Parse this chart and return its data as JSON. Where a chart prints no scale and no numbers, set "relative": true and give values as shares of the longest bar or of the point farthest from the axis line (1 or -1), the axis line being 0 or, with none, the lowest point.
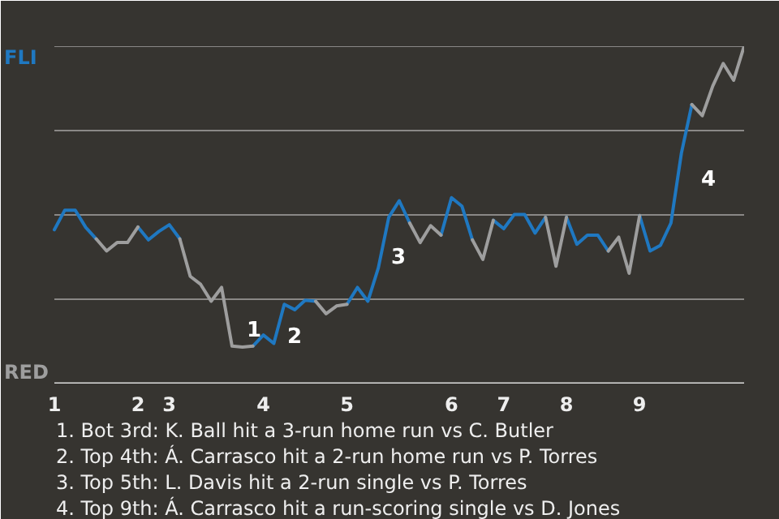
{
  "chart_data": {
    "type": "line",
    "relative": true,
    "categories": [
      "1",
      null,
      null,
      null,
      null,
      null,
      null,
      null,
      "2",
      null,
      null,
      "3",
      null,
      null,
      null,
      null,
      null,
      null,
      null,
      null,
      "4",
      null,
      null,
      null,
      null,
      null,
      null,
      null,
      "5",
      null,
      null,
      null,
      null,
      null,
      null,
      null,
      null,
      null,
      "6",
      null,
      null,
      null,
      null,
      "7",
      null,
      null,
      null,
      null,
      null,
      "8",
      null,
      null,
      null,
      null,
      null,
      null,
      "9",
      null,
      null,
      null,
      null,
      null,
      null,
      null,
      null,
      null,
      null
    ],
    "series": [
      {
        "color": "#1f78c1",
        "values": [
          0.456,
          0.514,
          0.514,
          0.463,
          0.429,
          null,
          null,
          null,
          0.464,
          0.426,
          0.451,
          0.471,
          0.429,
          null,
          null,
          null,
          null,
          null,
          null,
          0.111,
          0.144,
          0.119,
          0.235,
          0.219,
          0.247,
          0.244,
          null,
          null,
          0.235,
          0.285,
          0.244,
          0.343,
          0.493,
          0.542,
          0.476,
          null,
          null,
          0.44,
          0.551,
          0.526,
          0.426,
          null,
          0.484,
          0.459,
          0.501,
          0.501,
          0.446,
          0.493,
          null,
          0.493,
          0.413,
          0.44,
          0.44,
          0.393,
          null,
          null,
          0.498,
          0.393,
          0.41,
          0.476,
          0.683,
          0.827,
          null,
          null,
          null,
          null,
          null
        ]
      },
      {
        "color": "#9e9e9e",
        "values": [
          null,
          null,
          null,
          null,
          0.429,
          0.393,
          0.418,
          0.418,
          0.464,
          null,
          null,
          null,
          0.429,
          0.318,
          0.294,
          0.244,
          0.285,
          0.111,
          0.108,
          0.111,
          null,
          null,
          null,
          null,
          null,
          0.244,
          0.207,
          0.23,
          0.235,
          null,
          null,
          null,
          null,
          null,
          0.476,
          0.418,
          0.468,
          0.44,
          null,
          null,
          0.426,
          0.368,
          0.484,
          null,
          null,
          null,
          null,
          0.493,
          0.348,
          0.493,
          null,
          null,
          null,
          0.393,
          0.434,
          0.327,
          0.498,
          null,
          null,
          null,
          null,
          0.827,
          0.794,
          0.882,
          0.949,
          0.899,
          1
        ]
      }
    ],
    "grid": "y",
    "line_style": "solid",
    "annotations": [
      "FLI",
      "RED",
      "1",
      "2",
      "3",
      "4",
      "1. Bot 3rd: K. Ball hit a 3-run home run vs C. Butler",
      "2. Top 4th: Á. Carrasco hit a 2-run home run vs P. Torres",
      "3. Top 5th: L. Davis hit a 2-run single vs P. Torres",
      "4. Top 9th: Á. Carrasco hit a run-scoring single vs D. Jones"
    ]
  }
}
